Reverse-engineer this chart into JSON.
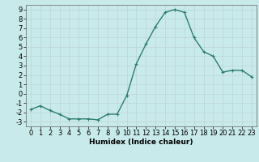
{
  "x": [
    0,
    1,
    2,
    3,
    4,
    5,
    6,
    7,
    8,
    9,
    10,
    11,
    12,
    13,
    14,
    15,
    16,
    17,
    18,
    19,
    20,
    21,
    22,
    23
  ],
  "y": [
    -1.7,
    -1.3,
    -1.8,
    -2.2,
    -2.7,
    -2.7,
    -2.7,
    -2.8,
    -2.2,
    -2.2,
    -0.2,
    3.2,
    5.3,
    7.2,
    8.7,
    9.0,
    8.7,
    6.0,
    4.5,
    4.0,
    2.3,
    2.5,
    2.5,
    1.8
  ],
  "line_color": "#2d7d6e",
  "marker": "+",
  "marker_color": "#2d7d6e",
  "bg_color": "#c8eaea",
  "grid_color": "#c0d8d8",
  "xlabel": "Humidex (Indice chaleur)",
  "ylim": [
    -3.5,
    9.5
  ],
  "xlim": [
    -0.5,
    23.5
  ],
  "yticks": [
    -3,
    -2,
    -1,
    0,
    1,
    2,
    3,
    4,
    5,
    6,
    7,
    8,
    9
  ],
  "xticks": [
    0,
    1,
    2,
    3,
    4,
    5,
    6,
    7,
    8,
    9,
    10,
    11,
    12,
    13,
    14,
    15,
    16,
    17,
    18,
    19,
    20,
    21,
    22,
    23
  ],
  "xlabel_fontsize": 6.5,
  "tick_fontsize": 6.0,
  "line_width": 1.0,
  "marker_size": 3.5
}
